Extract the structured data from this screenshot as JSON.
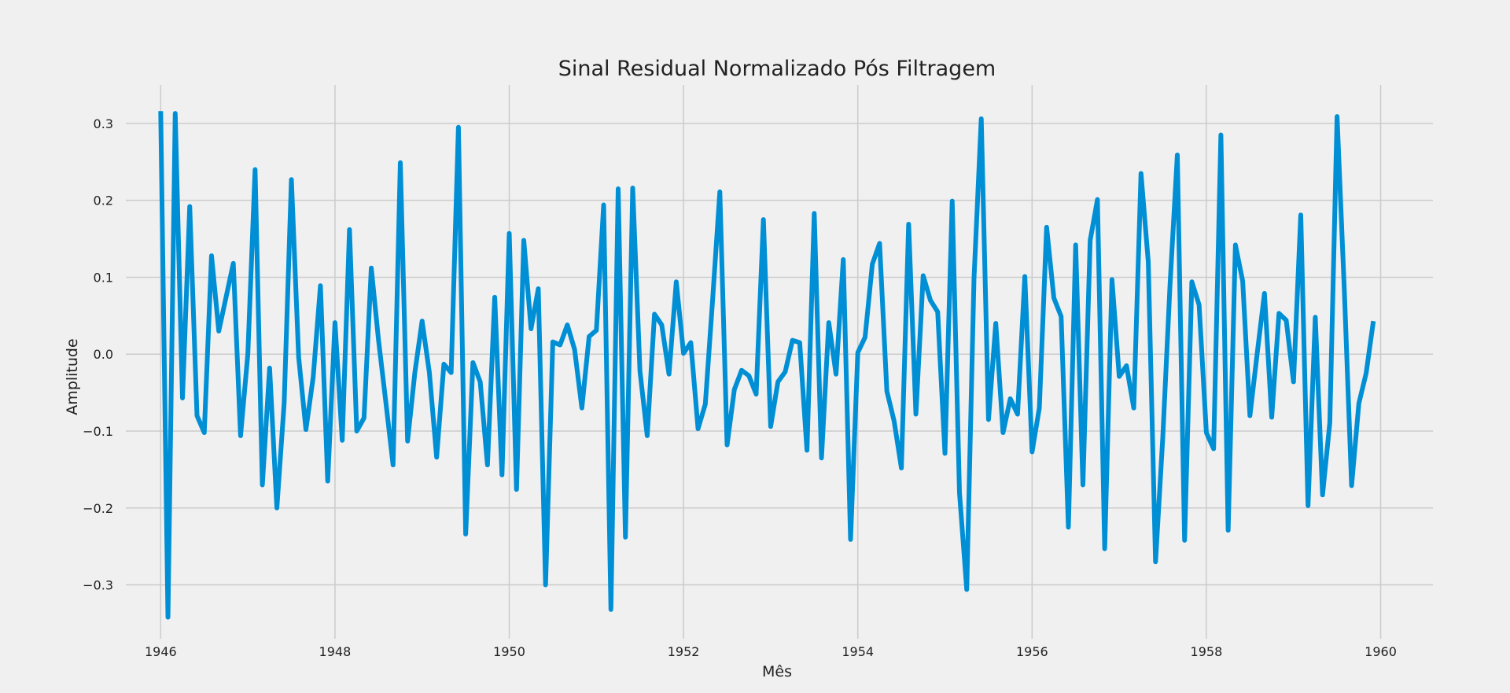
{
  "chart_data": {
    "type": "line",
    "title": "Sinal Residual Normalizado Pós Filtragem",
    "xlabel": "Mês",
    "ylabel": "Amplitude",
    "grid": true,
    "xlim": [
      1945.6,
      1960.6
    ],
    "ylim": [
      -0.37,
      0.35
    ],
    "x_ticks": [
      1946,
      1948,
      1950,
      1952,
      1954,
      1956,
      1958,
      1960
    ],
    "x_tick_labels": [
      "1946",
      "1948",
      "1950",
      "1952",
      "1954",
      "1956",
      "1958",
      "1960"
    ],
    "y_ticks": [
      -0.3,
      -0.2,
      -0.1,
      0.0,
      0.1,
      0.2,
      0.3
    ],
    "y_tick_labels": [
      "−0.3",
      "−0.2",
      "−0.1",
      "0.0",
      "0.1",
      "0.2",
      "0.3"
    ],
    "x_start": "1946-01",
    "x_step_months": 1,
    "series": [
      {
        "color": "#008fd5",
        "values": [
          0.316,
          -0.342,
          0.313,
          -0.057,
          0.192,
          -0.08,
          -0.102,
          0.128,
          0.03,
          0.074,
          0.118,
          -0.106,
          0.0,
          0.24,
          -0.17,
          -0.018,
          -0.2,
          -0.064,
          0.227,
          -0.004,
          -0.098,
          -0.03,
          0.089,
          -0.165,
          0.041,
          -0.112,
          0.162,
          -0.1,
          -0.083,
          0.112,
          0.018,
          -0.062,
          -0.144,
          0.249,
          -0.113,
          -0.024,
          0.043,
          -0.024,
          -0.134,
          -0.013,
          -0.024,
          0.295,
          -0.234,
          -0.011,
          -0.036,
          -0.144,
          0.074,
          -0.157,
          0.157,
          -0.176,
          0.148,
          0.033,
          0.085,
          -0.3,
          0.016,
          0.012,
          0.038,
          0.006,
          -0.07,
          0.023,
          0.031,
          0.194,
          -0.332,
          0.215,
          -0.238,
          0.216,
          -0.022,
          -0.106,
          0.052,
          0.038,
          -0.026,
          0.094,
          0.001,
          0.015,
          -0.097,
          -0.065,
          0.07,
          0.211,
          -0.118,
          -0.046,
          -0.021,
          -0.028,
          -0.052,
          0.175,
          -0.094,
          -0.036,
          -0.023,
          0.018,
          0.015,
          -0.125,
          0.183,
          -0.135,
          0.041,
          -0.026,
          0.123,
          -0.241,
          0.002,
          0.022,
          0.117,
          0.144,
          -0.048,
          -0.087,
          -0.148,
          0.169,
          -0.078,
          0.102,
          0.07,
          0.055,
          -0.129,
          0.199,
          -0.18,
          -0.306,
          0.098,
          0.306,
          -0.085,
          0.04,
          -0.102,
          -0.058,
          -0.078,
          0.101,
          -0.127,
          -0.07,
          0.165,
          0.073,
          0.049,
          -0.225,
          0.142,
          -0.17,
          0.148,
          0.201,
          -0.253,
          0.097,
          -0.029,
          -0.015,
          -0.07,
          0.235,
          0.12,
          -0.27,
          -0.108,
          0.091,
          0.259,
          -0.242,
          0.094,
          0.064,
          -0.102,
          -0.123,
          0.285,
          -0.229,
          0.142,
          0.095,
          -0.08,
          0.001,
          0.079,
          -0.082,
          0.053,
          0.044,
          -0.036,
          0.181,
          -0.197,
          0.048,
          -0.183,
          -0.089,
          0.309,
          0.083,
          -0.171,
          -0.064,
          -0.025,
          0.043
        ]
      }
    ]
  }
}
